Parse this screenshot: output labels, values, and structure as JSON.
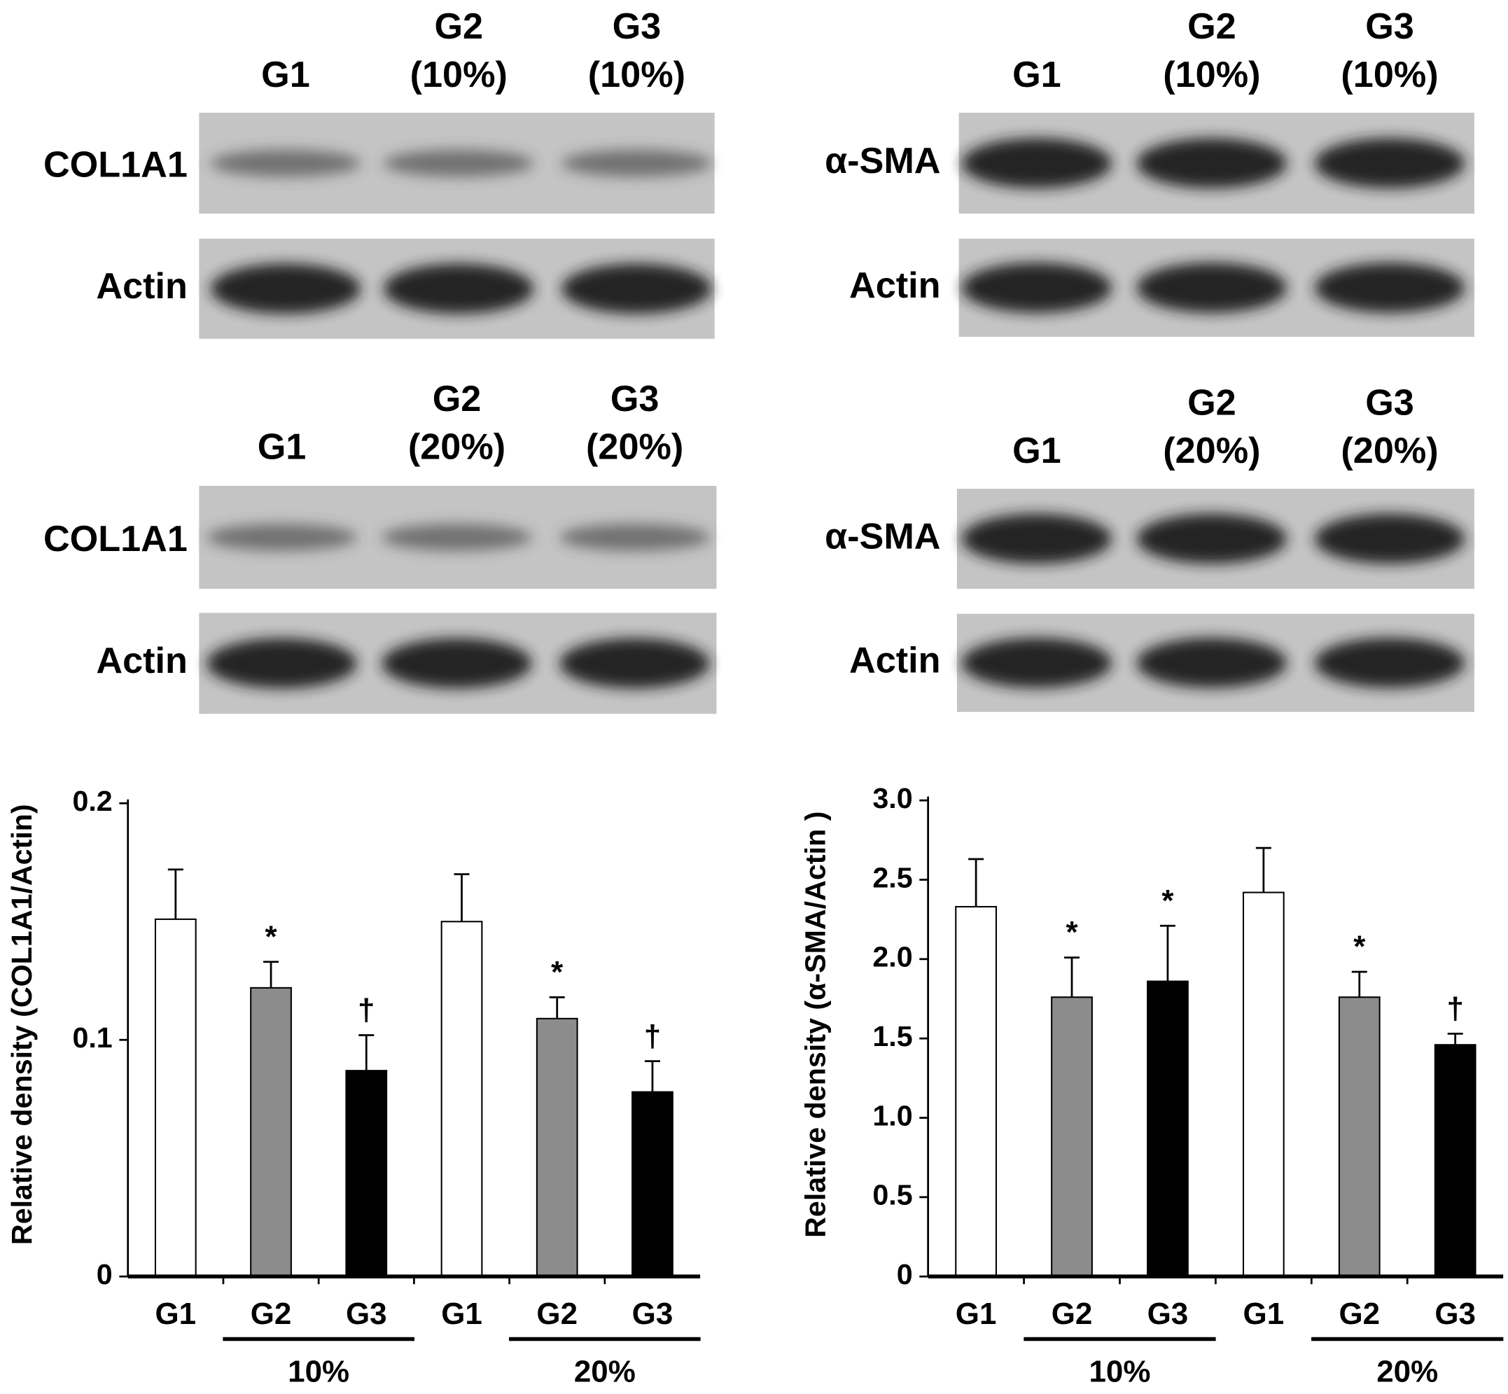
{
  "blots": [
    {
      "lanes": [
        [
          "G1"
        ],
        [
          "G2",
          "(10%)"
        ],
        [
          "G3",
          "(10%)"
        ]
      ],
      "rows": [
        "COL1A1",
        "Actin"
      ]
    },
    {
      "lanes": [
        [
          "G1"
        ],
        [
          "G2",
          "(10%)"
        ],
        [
          "G3",
          "(10%)"
        ]
      ],
      "rows": [
        "α-SMA",
        "Actin"
      ]
    },
    {
      "lanes": [
        [
          "G1"
        ],
        [
          "G2",
          "(20%)"
        ],
        [
          "G3",
          "(20%)"
        ]
      ],
      "rows": [
        "COL1A1",
        "Actin"
      ]
    },
    {
      "lanes": [
        [
          "G1"
        ],
        [
          "G2",
          "(20%)"
        ],
        [
          "G3",
          "(20%)"
        ]
      ],
      "rows": [
        "α-SMA",
        "Actin"
      ]
    }
  ],
  "chart_data": [
    {
      "type": "bar",
      "ylabel": "Relative density (COL1A1/Actin)",
      "categories": [
        "G1",
        "G2",
        "G3",
        "G1",
        "G2",
        "G3"
      ],
      "values": [
        0.151,
        0.122,
        0.087,
        0.15,
        0.109,
        0.078
      ],
      "errors": [
        0.021,
        0.011,
        0.015,
        0.02,
        0.009,
        0.013
      ],
      "colors": [
        "#ffffff",
        "#8c8c8c",
        "#000000",
        "#ffffff",
        "#8c8c8c",
        "#000000"
      ],
      "bar_labels": [
        null,
        "*",
        "†",
        null,
        "*",
        "†"
      ],
      "groups": [
        "10%",
        "20%"
      ],
      "ylim": [
        0,
        0.2
      ],
      "yticks": [
        0,
        0.1,
        0.2
      ]
    },
    {
      "type": "bar",
      "ylabel": "Relative density (α-SMA/Actin )",
      "categories": [
        "G1",
        "G2",
        "G3",
        "G1",
        "G2",
        "G3"
      ],
      "values": [
        2.33,
        1.76,
        1.86,
        2.42,
        1.76,
        1.46
      ],
      "errors": [
        0.3,
        0.25,
        0.35,
        0.28,
        0.16,
        0.07
      ],
      "colors": [
        "#ffffff",
        "#8c8c8c",
        "#000000",
        "#ffffff",
        "#8c8c8c",
        "#000000"
      ],
      "bar_labels": [
        null,
        "*",
        "*",
        null,
        "*",
        "†"
      ],
      "groups": [
        "10%",
        "20%"
      ],
      "ylim": [
        0,
        3
      ],
      "yticks": [
        0,
        0.5,
        {
          "value": 1,
          "label": "1.0"
        },
        1.5,
        {
          "value": 2,
          "label": "2.0"
        },
        2.5,
        {
          "value": 3,
          "label": "3.0"
        }
      ]
    }
  ]
}
